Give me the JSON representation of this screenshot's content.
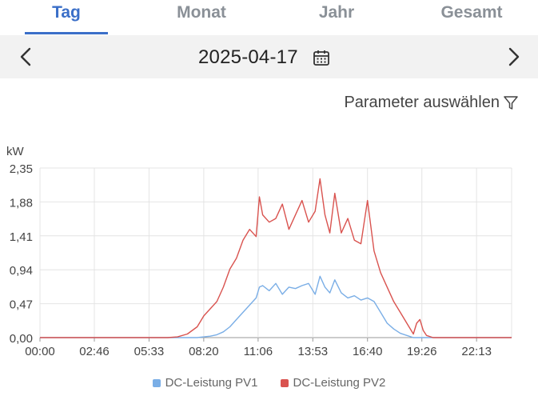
{
  "tabs": [
    {
      "label": "Tag",
      "active": true
    },
    {
      "label": "Monat",
      "active": false
    },
    {
      "label": "Jahr",
      "active": false
    },
    {
      "label": "Gesamt",
      "active": false
    }
  ],
  "date_bar": {
    "date": "2025-04-17",
    "prev_icon": "chevron-left-icon",
    "next_icon": "chevron-right-icon",
    "calendar_icon": "calendar-icon"
  },
  "parameter": {
    "label": "Parameter auswählen",
    "icon": "filter-icon"
  },
  "colors": {
    "accent": "#3b6fc8",
    "pv1": "#7aaee6",
    "pv2": "#d9534f"
  },
  "chart_data": {
    "type": "line",
    "ylabel": "kW",
    "ylim": [
      0,
      2.35
    ],
    "yticks": [
      "0,00",
      "0,47",
      "0,94",
      "1,41",
      "1,88",
      "2,35"
    ],
    "xticks": [
      "00:00",
      "02:46",
      "05:33",
      "08:20",
      "11:06",
      "13:53",
      "16:40",
      "19:26",
      "22:13"
    ],
    "x": [
      "00:00",
      "05:00",
      "06:30",
      "07:00",
      "07:30",
      "08:00",
      "08:20",
      "08:40",
      "09:00",
      "09:20",
      "09:40",
      "10:00",
      "10:20",
      "10:40",
      "11:00",
      "11:10",
      "11:20",
      "11:40",
      "12:00",
      "12:20",
      "12:40",
      "13:00",
      "13:20",
      "13:40",
      "14:00",
      "14:15",
      "14:30",
      "14:45",
      "15:00",
      "15:20",
      "15:40",
      "16:00",
      "16:20",
      "16:40",
      "17:00",
      "17:20",
      "17:40",
      "18:00",
      "18:20",
      "18:40",
      "19:00",
      "19:10",
      "19:20",
      "19:30",
      "19:40",
      "20:00",
      "24:00"
    ],
    "series": [
      {
        "name": "DC-Leistung PV1",
        "color": "#7aaee6",
        "values": [
          0,
          0,
          0,
          0,
          0,
          0,
          0.01,
          0.02,
          0.04,
          0.08,
          0.15,
          0.25,
          0.35,
          0.45,
          0.55,
          0.7,
          0.72,
          0.65,
          0.75,
          0.6,
          0.7,
          0.68,
          0.72,
          0.75,
          0.6,
          0.85,
          0.7,
          0.62,
          0.8,
          0.62,
          0.55,
          0.58,
          0.52,
          0.55,
          0.5,
          0.35,
          0.2,
          0.12,
          0.06,
          0.03,
          0,
          0,
          0,
          0,
          0,
          0,
          0
        ]
      },
      {
        "name": "DC-Leistung PV2",
        "color": "#d9534f",
        "values": [
          0,
          0,
          0,
          0.01,
          0.05,
          0.15,
          0.3,
          0.4,
          0.5,
          0.7,
          0.95,
          1.1,
          1.35,
          1.5,
          1.4,
          1.95,
          1.7,
          1.6,
          1.65,
          1.85,
          1.5,
          1.7,
          1.9,
          1.6,
          1.75,
          2.2,
          1.7,
          1.45,
          2.0,
          1.45,
          1.65,
          1.35,
          1.3,
          1.9,
          1.2,
          0.9,
          0.7,
          0.5,
          0.35,
          0.2,
          0.05,
          0.2,
          0.25,
          0.1,
          0.03,
          0,
          0
        ]
      }
    ],
    "grid": true,
    "legend": "bottom"
  }
}
